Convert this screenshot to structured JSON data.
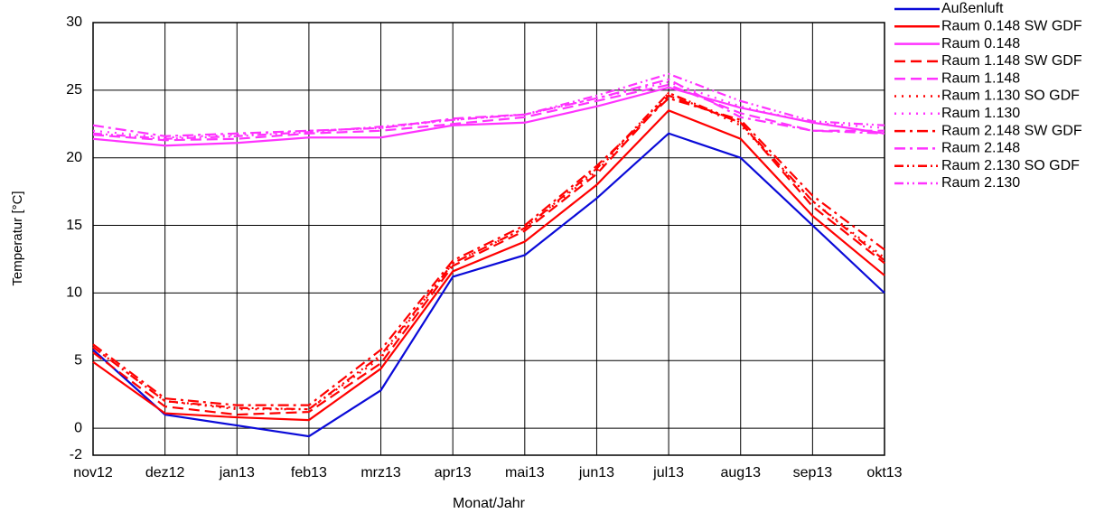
{
  "chart_data": {
    "type": "line",
    "x_label": "Monat/Jahr",
    "y_label": "Temperatur [°C]",
    "categories": [
      "nov12",
      "dez12",
      "jan13",
      "feb13",
      "mrz13",
      "apr13",
      "mai13",
      "jun13",
      "jul13",
      "aug13",
      "sep13",
      "okt13"
    ],
    "ylim": [
      -2,
      30
    ],
    "yticks": [
      -2,
      0,
      5,
      10,
      15,
      20,
      25,
      30
    ],
    "grid": true,
    "legend": "right",
    "series": [
      {
        "name": "Außenluft",
        "color": "#0a0ad8",
        "dash": "solid",
        "values": [
          5.8,
          1.0,
          0.2,
          -0.6,
          2.8,
          11.2,
          12.8,
          17.0,
          21.8,
          20.0,
          15.0,
          10.0
        ]
      },
      {
        "name": "Raum 0.148 SW GDF",
        "color": "#ff0000",
        "dash": "solid",
        "values": [
          4.9,
          1.1,
          0.8,
          0.6,
          4.4,
          11.6,
          13.8,
          18.0,
          23.5,
          21.4,
          15.7,
          11.3
        ]
      },
      {
        "name": "Raum 0.148",
        "color": "#ff33ff",
        "dash": "solid",
        "values": [
          21.4,
          20.9,
          21.1,
          21.5,
          21.5,
          22.4,
          22.6,
          23.8,
          25.2,
          23.7,
          22.6,
          21.8
        ]
      },
      {
        "name": "Raum 1.148 SW GDF",
        "color": "#ff0000",
        "dash": "dashed",
        "values": [
          5.6,
          1.6,
          1.0,
          1.2,
          4.8,
          12.0,
          14.6,
          18.8,
          24.6,
          22.6,
          16.4,
          12.2
        ]
      },
      {
        "name": "Raum 1.148",
        "color": "#ff33ff",
        "dash": "dashed",
        "values": [
          21.7,
          21.3,
          21.4,
          21.8,
          22.0,
          22.5,
          23.0,
          24.2,
          25.4,
          23.3,
          22.0,
          22.0
        ]
      },
      {
        "name": "Raum 1.130 SO GDF",
        "color": "#ff0000",
        "dash": "dotted",
        "values": [
          6.0,
          2.0,
          1.4,
          1.4,
          5.2,
          12.2,
          14.8,
          19.0,
          24.8,
          22.4,
          16.8,
          12.6
        ]
      },
      {
        "name": "Raum 1.130",
        "color": "#ff33ff",
        "dash": "dotted",
        "values": [
          22.0,
          21.5,
          21.7,
          22.0,
          22.2,
          22.8,
          23.2,
          24.4,
          25.6,
          23.8,
          22.6,
          22.2
        ]
      },
      {
        "name": "Raum 2.148 SW GDF",
        "color": "#ff0000",
        "dash": "dashdot",
        "values": [
          6.2,
          2.2,
          1.7,
          1.7,
          5.8,
          12.4,
          15.0,
          19.4,
          24.4,
          22.8,
          17.2,
          13.2
        ]
      },
      {
        "name": "Raum 2.148",
        "color": "#ff33ff",
        "dash": "dashdot",
        "values": [
          22.4,
          21.6,
          21.8,
          22.0,
          22.2,
          22.9,
          23.2,
          24.4,
          25.8,
          23.0,
          22.0,
          21.8
        ]
      },
      {
        "name": "Raum 2.130 SO GDF",
        "color": "#ff0000",
        "dash": "dashdotdot",
        "values": [
          6.0,
          2.0,
          1.5,
          1.4,
          5.4,
          12.2,
          14.8,
          19.2,
          24.8,
          22.6,
          16.8,
          12.4
        ]
      },
      {
        "name": "Raum 2.130",
        "color": "#ff33ff",
        "dash": "dashdotdot",
        "values": [
          21.8,
          21.4,
          21.6,
          21.9,
          22.3,
          22.8,
          23.2,
          24.6,
          26.2,
          24.2,
          22.7,
          22.4
        ]
      }
    ]
  }
}
